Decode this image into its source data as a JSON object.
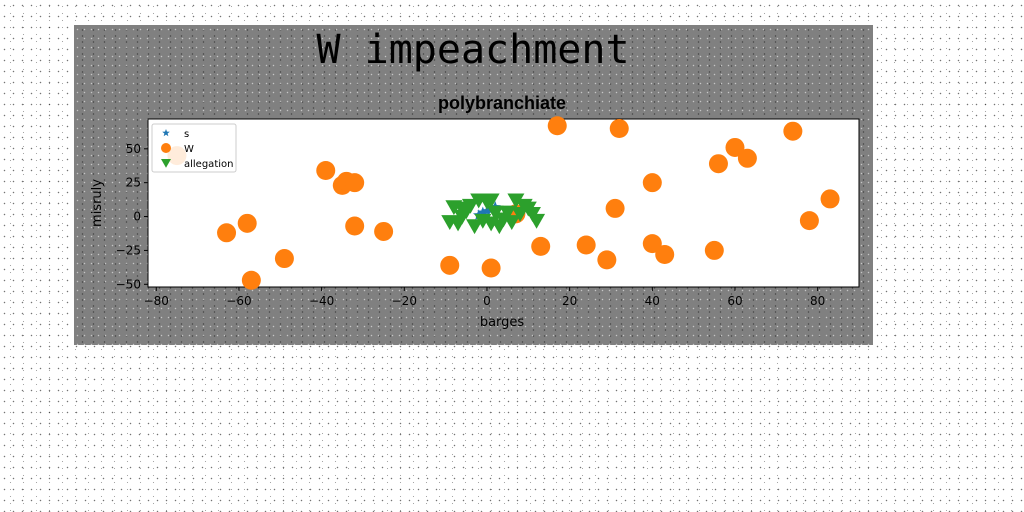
{
  "chart_data": {
    "type": "scatter",
    "suptitle": "W impeachment",
    "title": "polybranchiate",
    "xlabel": "barges",
    "ylabel": "misruly",
    "xlim": [
      -82,
      90
    ],
    "ylim": [
      -52,
      72
    ],
    "xticks": [
      -80,
      -60,
      -40,
      -20,
      0,
      20,
      40,
      60,
      80
    ],
    "yticks": [
      -50,
      -25,
      0,
      25,
      50
    ],
    "grid": false,
    "legend_position": "upper-left",
    "series": [
      {
        "name": "s",
        "marker": "star",
        "color": "#1f77b4",
        "points": [
          [
            -1,
            3
          ],
          [
            1,
            5
          ],
          [
            2,
            7
          ],
          [
            -2,
            1
          ],
          [
            0,
            4
          ]
        ]
      },
      {
        "name": "W",
        "marker": "circle",
        "color": "#ff7f0e",
        "points": [
          [
            -75,
            45
          ],
          [
            -63,
            -12
          ],
          [
            -58,
            -5
          ],
          [
            -57,
            -47
          ],
          [
            -49,
            -31
          ],
          [
            -39,
            34
          ],
          [
            -35,
            23
          ],
          [
            -34,
            26
          ],
          [
            -32,
            25
          ],
          [
            -32,
            -7
          ],
          [
            -25,
            -11
          ],
          [
            -9,
            -36
          ],
          [
            1,
            -38
          ],
          [
            13,
            -22
          ],
          [
            17,
            67
          ],
          [
            24,
            -21
          ],
          [
            29,
            -32
          ],
          [
            31,
            6
          ],
          [
            32,
            65
          ],
          [
            40,
            25
          ],
          [
            40,
            -20
          ],
          [
            43,
            -28
          ],
          [
            55,
            -25
          ],
          [
            56,
            39
          ],
          [
            60,
            51
          ],
          [
            63,
            43
          ],
          [
            74,
            63
          ],
          [
            78,
            -3
          ],
          [
            83,
            13
          ],
          [
            7,
            2
          ]
        ]
      },
      {
        "name": "allegation",
        "marker": "triangle_down",
        "color": "#2ca02c",
        "points": [
          [
            -8,
            7
          ],
          [
            -6,
            6
          ],
          [
            -4,
            8
          ],
          [
            -2,
            12
          ],
          [
            0,
            11
          ],
          [
            1,
            12
          ],
          [
            7,
            12
          ],
          [
            9,
            8
          ],
          [
            11,
            2
          ],
          [
            12,
            -3
          ],
          [
            -9,
            -4
          ],
          [
            -7,
            -5
          ],
          [
            -5,
            4
          ],
          [
            -3,
            -7
          ],
          [
            -1,
            -3
          ],
          [
            1,
            -5
          ],
          [
            3,
            -7
          ],
          [
            4,
            -2
          ],
          [
            5,
            3
          ],
          [
            6,
            -4
          ],
          [
            8,
            2
          ],
          [
            10,
            6
          ],
          [
            -6,
            0
          ],
          [
            2,
            3
          ]
        ]
      }
    ]
  }
}
